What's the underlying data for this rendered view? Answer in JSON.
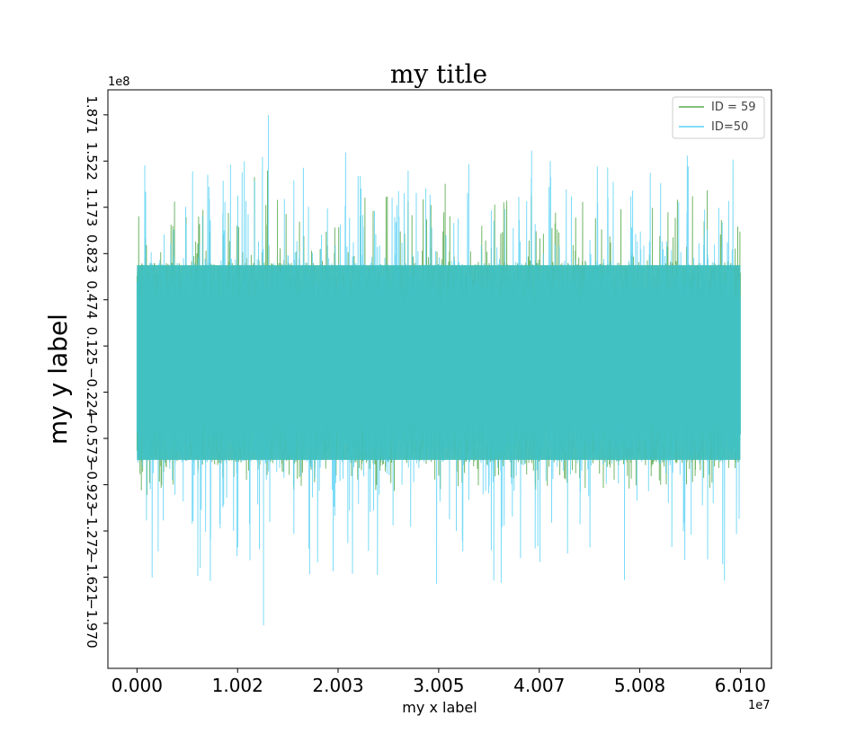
{
  "chart_data": {
    "type": "line",
    "title": "my title",
    "xlabel": "my x label",
    "ylabel": "my y label",
    "x_offset_label": "1e7",
    "y_offset_label": "1e8",
    "xlim": [
      -0.29,
      6.32
    ],
    "ylim": [
      -2.31,
      2.06
    ],
    "x_ticks": [
      0.0,
      1.002,
      2.003,
      3.005,
      4.007,
      5.008,
      6.01
    ],
    "x_tick_labels": [
      "0.000",
      "1.002",
      "2.003",
      "3.005",
      "4.007",
      "5.008",
      "6.010"
    ],
    "y_ticks": [
      1.871,
      1.522,
      1.173,
      0.823,
      0.474,
      0.125,
      -0.224,
      -0.573,
      -0.923,
      -1.272,
      -1.621,
      -1.97
    ],
    "y_tick_labels": [
      "1.871",
      "1.522",
      "1.173",
      "0.823",
      "0.474",
      "0.125",
      "−0.224",
      "−0.573",
      "−0.923",
      "−1.272",
      "−1.621",
      "−1.970"
    ],
    "legend_position": "top-right",
    "grid": false,
    "series": [
      {
        "name": "ID = 59",
        "color": "#5aaa50",
        "x_range": [
          0.0,
          6.01
        ],
        "band_y": [
          -0.75,
          0.75
        ],
        "peak_y": [
          -1.05,
          1.45
        ]
      },
      {
        "name": "ID=50",
        "color": "#5ad2f5",
        "x_range": [
          0.0,
          6.01
        ],
        "band_y": [
          -0.75,
          0.75
        ],
        "peak_y": [
          -1.985,
          1.87
        ]
      }
    ],
    "overlap_color": "#3ec0c0"
  }
}
